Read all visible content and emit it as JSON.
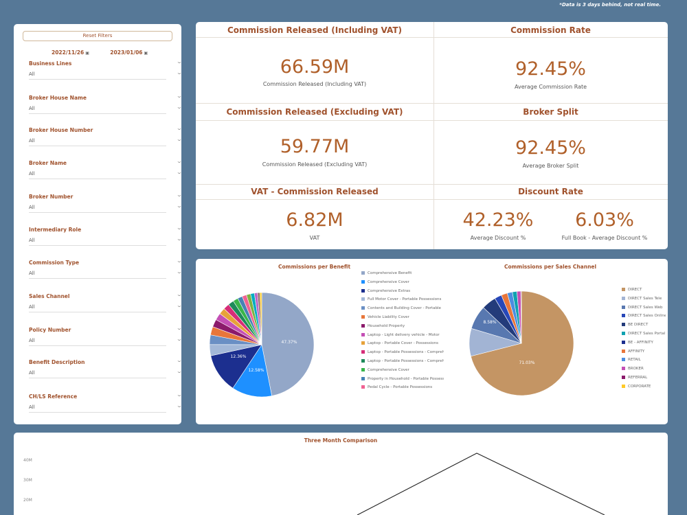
{
  "note": "*Data is 3 days behind, not real time.",
  "filters": {
    "reset_label": "Reset Filters",
    "date_from": "2022/11/26",
    "date_to": "2023/01/06",
    "items": [
      {
        "label": "Business Lines",
        "value": "All"
      },
      {
        "label": "Broker House Name",
        "value": "All"
      },
      {
        "label": "Broker House Number",
        "value": "All"
      },
      {
        "label": "Broker Name",
        "value": "All"
      },
      {
        "label": "Broker Number",
        "value": "All"
      },
      {
        "label": "Intermediary Role",
        "value": "All"
      },
      {
        "label": "Commission Type",
        "value": "All"
      },
      {
        "label": "Sales Channel",
        "value": "All"
      },
      {
        "label": "Policy Number",
        "value": "All"
      },
      {
        "label": "Benefit Description",
        "value": "All"
      },
      {
        "label": "CH/LS Reference",
        "value": "All"
      }
    ]
  },
  "kpis": {
    "incl": {
      "title": "Commission Released (Including VAT)",
      "value": "66.59M",
      "sub": "Commission Released (Including VAT)"
    },
    "rate": {
      "title": "Commission Rate",
      "value": "92.45%",
      "sub": "Average Commission Rate"
    },
    "excl": {
      "title": "Commission Released (Excluding VAT)",
      "value": "59.77M",
      "sub": "Commission Released (Excluding VAT)"
    },
    "split": {
      "title": "Broker Split",
      "value": "92.45%",
      "sub": "Average Broker Split"
    },
    "vat": {
      "title": "VAT - Commission Released",
      "value": "6.82M",
      "sub": "VAT"
    },
    "discount": {
      "title": "Discount Rate",
      "value1": "42.23%",
      "sub1": "Average Discount %",
      "value2": "6.03%",
      "sub2": "Full Book - Average Discount %"
    }
  },
  "pie1": {
    "title": "Commissions per Benefit",
    "labels": [
      "47.37%",
      "12.58%",
      "12.36%"
    ],
    "slices": [
      {
        "value": 47.37,
        "color": "#93a7c8"
      },
      {
        "value": 12.58,
        "color": "#1e90ff"
      },
      {
        "value": 12.36,
        "color": "#1c2f8f"
      },
      {
        "value": 3.5,
        "color": "#a3b8d8"
      },
      {
        "value": 3.0,
        "color": "#6a8fc4"
      },
      {
        "value": 2.6,
        "color": "#e8763a"
      },
      {
        "value": 2.4,
        "color": "#8b1a6b"
      },
      {
        "value": 2.2,
        "color": "#c44fb5"
      },
      {
        "value": 2.0,
        "color": "#e7a23a"
      },
      {
        "value": 1.9,
        "color": "#d62d78"
      },
      {
        "value": 1.8,
        "color": "#1e8a5a"
      },
      {
        "value": 1.6,
        "color": "#39b54a"
      },
      {
        "value": 1.5,
        "color": "#4682b4"
      },
      {
        "value": 1.4,
        "color": "#f06292"
      },
      {
        "value": 1.3,
        "color": "#7cb342"
      },
      {
        "value": 1.2,
        "color": "#00acc1"
      },
      {
        "value": 1.0,
        "color": "#ba68c8"
      },
      {
        "value": 0.7,
        "color": "#8d6e63"
      },
      {
        "value": 0.59,
        "color": "#ffca28"
      }
    ],
    "legend": [
      {
        "label": "Comprehensive Benefit",
        "color": "#93a7c8"
      },
      {
        "label": "Comprehensive Cover",
        "color": "#1e90ff"
      },
      {
        "label": "Comprehensive Extras",
        "color": "#1c2f8f"
      },
      {
        "label": "Full Motor Cover - Portable Possessions",
        "color": "#a3b8d8"
      },
      {
        "label": "Contents and Building Cover - Portable",
        "color": "#6a8fc4"
      },
      {
        "label": "Vehicle Liability Cover",
        "color": "#e8763a"
      },
      {
        "label": "Household Property",
        "color": "#8b1a6b"
      },
      {
        "label": "Laptop - Light delivery vehicle - Motor",
        "color": "#c44fb5"
      },
      {
        "label": "Laptop - Portable Cover - Possessions",
        "color": "#e7a23a"
      },
      {
        "label": "Laptop - Portable Possessions - Comprehensive",
        "color": "#d62d78"
      },
      {
        "label": "Laptop - Portable Possessions - Comprehensive",
        "color": "#1e8a5a"
      },
      {
        "label": "Comprehensive Cover",
        "color": "#39b54a"
      },
      {
        "label": "Property in Household - Portable Possessions",
        "color": "#4682b4"
      },
      {
        "label": "Pedal Cycle - Portable Possessions",
        "color": "#f06292"
      }
    ]
  },
  "pie2": {
    "title": "Commissions per Sales Channel",
    "labels": [
      "71.03%",
      "8.58%"
    ],
    "slices": [
      {
        "value": 71.03,
        "color": "#c49564"
      },
      {
        "value": 8.58,
        "color": "#a2b4d4"
      },
      {
        "value": 7.4,
        "color": "#5878b0"
      },
      {
        "value": 4.5,
        "color": "#233b7a"
      },
      {
        "value": 2.2,
        "color": "#2747b8"
      },
      {
        "value": 1.9,
        "color": "#e8763a"
      },
      {
        "value": 1.6,
        "color": "#4b8de0"
      },
      {
        "value": 1.4,
        "color": "#0fa1b0"
      },
      {
        "value": 1.2,
        "color": "#c44fb5"
      },
      {
        "value": 0.19,
        "color": "#8b1a6b"
      }
    ],
    "legend": [
      {
        "label": "DIRECT",
        "color": "#c49564"
      },
      {
        "label": "DIRECT Sales Tele",
        "color": "#a2b4d4"
      },
      {
        "label": "DIRECT Sales Web",
        "color": "#5878b0"
      },
      {
        "label": "DIRECT Sales Online",
        "color": "#2747b8"
      },
      {
        "label": "BE DIRECT",
        "color": "#233b7a"
      },
      {
        "label": "DIRECT Sales Portal",
        "color": "#0fa1b0"
      },
      {
        "label": "BE - AFFINITY",
        "color": "#1c2f8f"
      },
      {
        "label": "AFFINITY",
        "color": "#e8763a"
      },
      {
        "label": "RETAIL",
        "color": "#4b8de0"
      },
      {
        "label": "BROKER",
        "color": "#c44fb5"
      },
      {
        "label": "REFERRAL",
        "color": "#8b1a6b"
      },
      {
        "label": "CORPORATE",
        "color": "#ffca28"
      }
    ]
  },
  "bottom": {
    "title": "Three Month Comparison",
    "y_ticks": [
      "40M",
      "30M",
      "20M"
    ]
  }
}
